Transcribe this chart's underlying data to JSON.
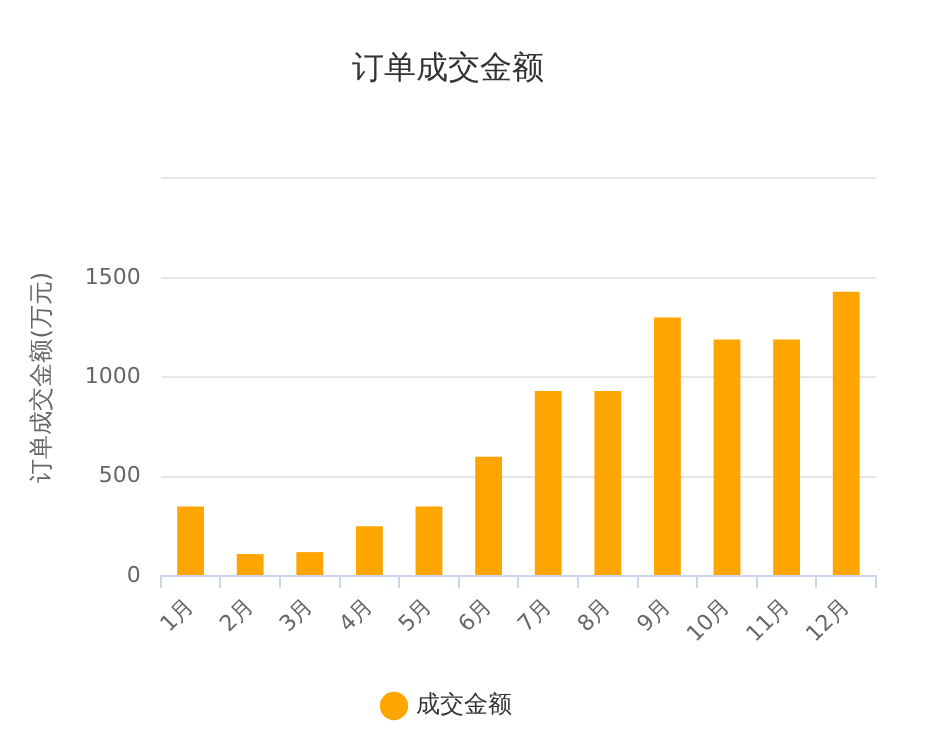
{
  "chart_data": {
    "type": "bar",
    "title": "订单成交金额",
    "ylabel": "订单成交金额(万元)",
    "categories": [
      "1月",
      "2月",
      "3月",
      "4月",
      "5月",
      "6月",
      "7月",
      "8月",
      "9月",
      "10月",
      "11月",
      "12月"
    ],
    "series": [
      {
        "name": "成交金额",
        "color": "#ffa500",
        "values": [
          350,
          110,
          120,
          250,
          350,
          600,
          930,
          930,
          1300,
          1190,
          1190,
          1430
        ]
      }
    ],
    "ylim": [
      0,
      2000
    ],
    "yticks": [
      0,
      500,
      1000,
      1500,
      {
        "value": 2000,
        "label": null
      }
    ],
    "grid": "y",
    "legend": "bottom",
    "marker": "circle"
  }
}
